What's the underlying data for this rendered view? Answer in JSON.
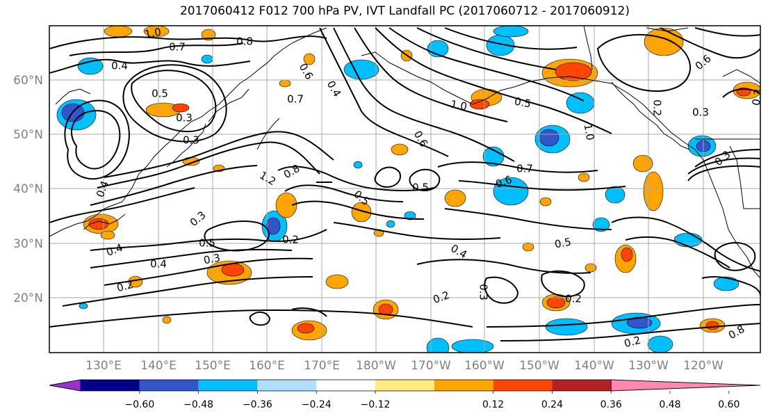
{
  "title": "2017060412 F012 700 hPa PV, IVT Landfall PC (2017060712 - 2017060912)",
  "lat_labels": [
    "60°N",
    "50°N",
    "40°N",
    "30°N",
    "20°N"
  ],
  "lon_labels": [
    "130°E",
    "140°E",
    "150°E",
    "160°E",
    "170°E",
    "180°W",
    "170°W",
    "160°W",
    "150°W",
    "140°W",
    "130°W",
    "120°W"
  ],
  "contour_labels": [
    "1.0",
    "0.8",
    "0.7",
    "0.4",
    "0.5",
    "0.3",
    "0.3",
    "0.6",
    "0.7",
    "0.4",
    "1.0",
    "0.5",
    "0.6",
    "0.7",
    "0.5",
    "0.6",
    "1.0",
    "1.2",
    "0.8",
    "0.5",
    "0.6",
    "0.4",
    "0.2",
    "0.3",
    "0.4",
    "0.2",
    "0.5",
    "0.3",
    "0.4",
    "0.3",
    "0.5",
    "0.4",
    "0.2",
    "0.2",
    "0.2",
    "0.8",
    "0.6",
    "0.3",
    "0.2",
    "0.3",
    "0.3"
  ],
  "colorbar": {
    "ticks": [
      "−0.60",
      "−0.48",
      "−0.36",
      "−0.24",
      "−0.12",
      "0.12",
      "0.24",
      "0.36",
      "0.48",
      "0.60"
    ],
    "colors": [
      "#9932cc",
      "#00008b",
      "#3355cc",
      "#00bfff",
      "#b0e0ff",
      "#ffffff",
      "#ffeb80",
      "#ffa500",
      "#ff4500",
      "#b22222",
      "#ff88b0"
    ]
  },
  "shading_colors": {
    "neg_weak": "#00bfff",
    "neg_mid": "#3355cc",
    "pos_weak": "#ffa500",
    "pos_mid": "#ff4500",
    "pos_light": "#ffeb80"
  }
}
